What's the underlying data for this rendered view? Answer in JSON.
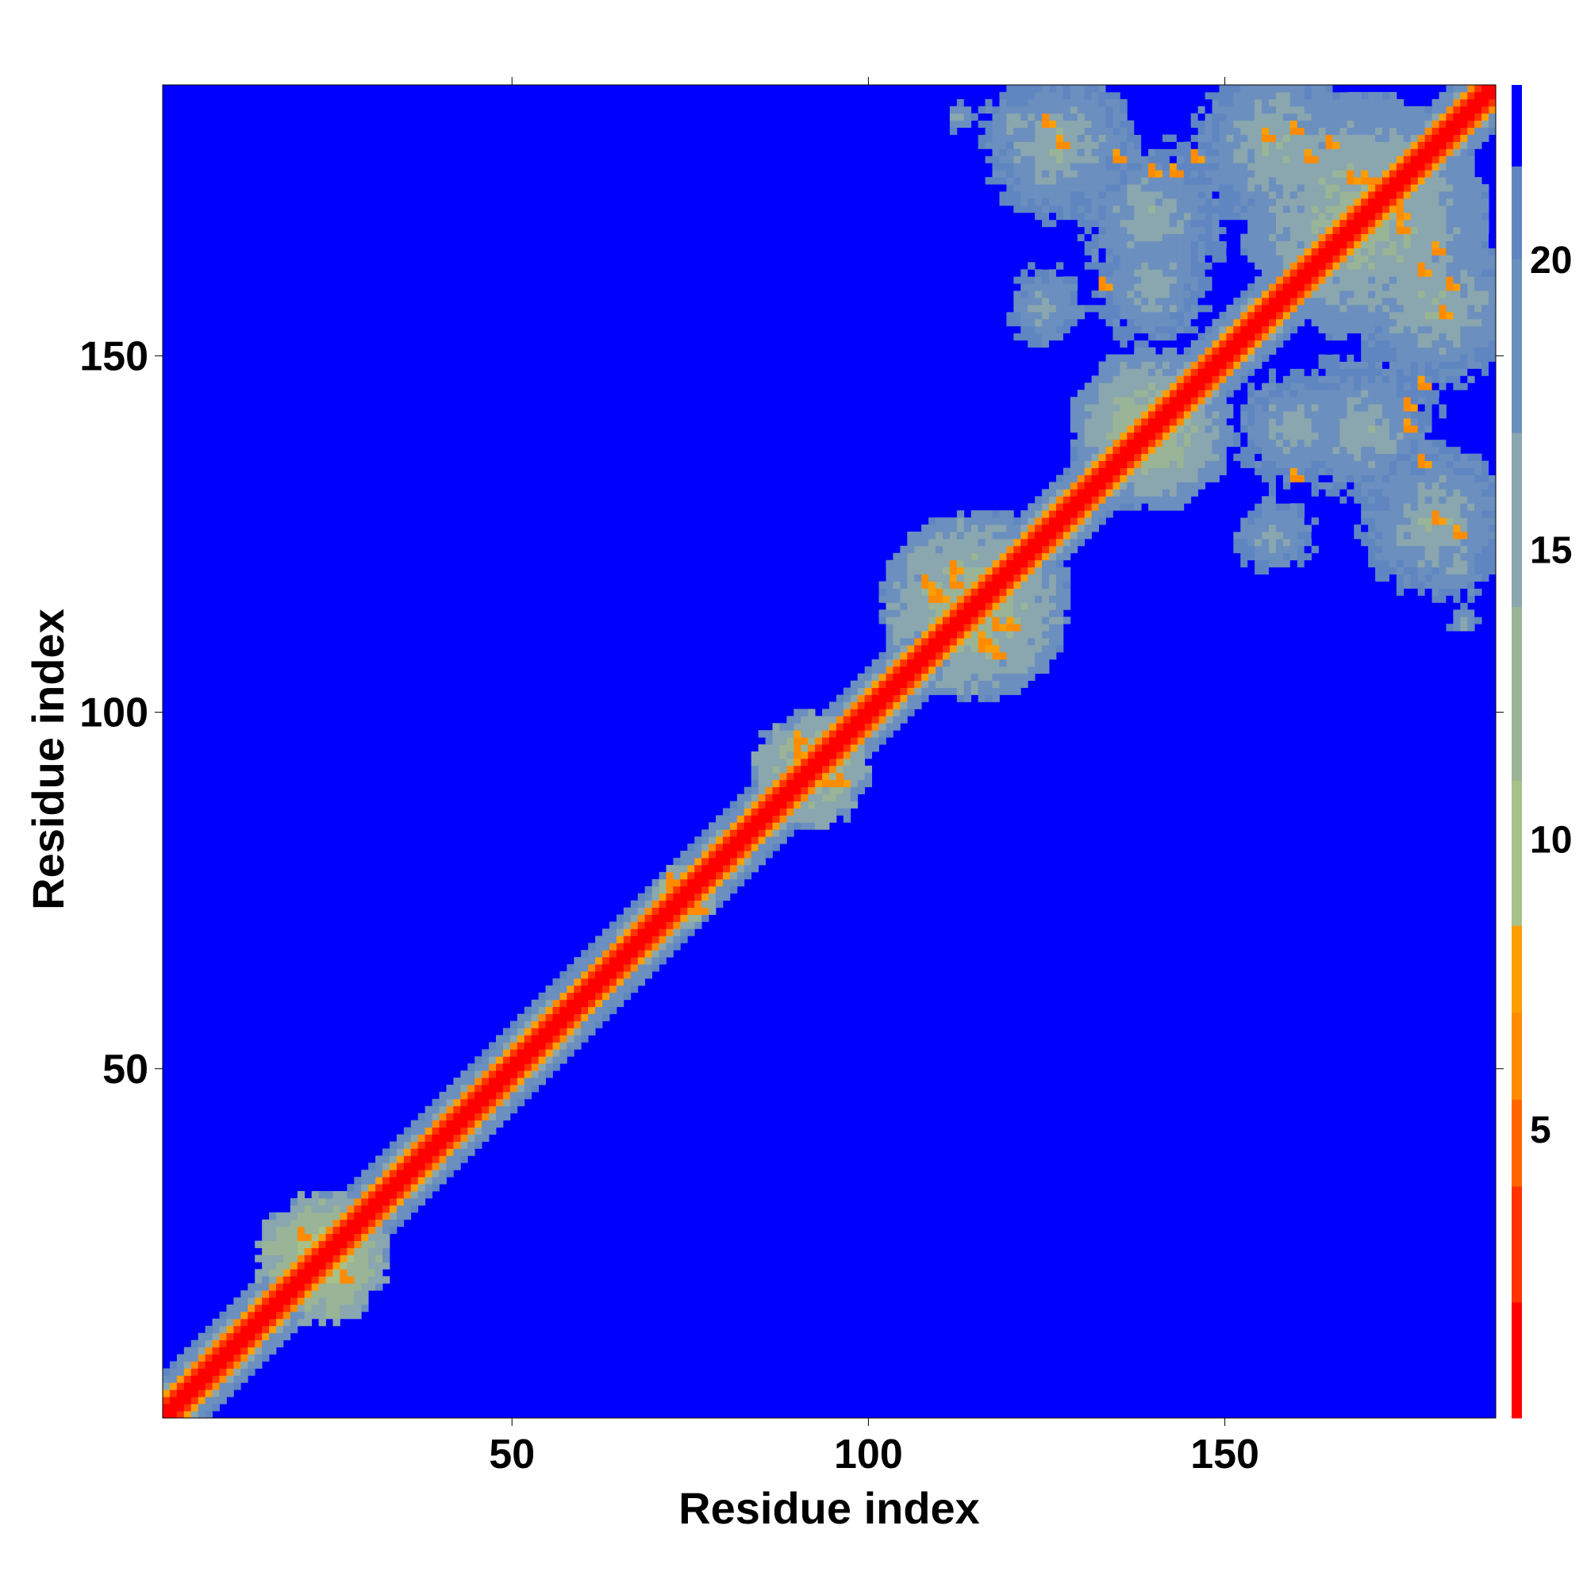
{
  "chart_data": {
    "type": "heatmap",
    "title": "",
    "xlabel": "Residue index",
    "ylabel": "Residue index",
    "n_residues": 188,
    "xlim": [
      1,
      188
    ],
    "ylim": [
      1,
      188
    ],
    "x_ticks": [
      50,
      100,
      150
    ],
    "y_ticks": [
      50,
      100,
      150
    ],
    "symmetric": true,
    "colorbar": {
      "range": [
        0,
        23
      ],
      "ticks": [
        5,
        10,
        15,
        20
      ],
      "color_stops": [
        {
          "upto": 2,
          "color": "#ff0000"
        },
        {
          "upto": 4,
          "color": "#ff3300"
        },
        {
          "upto": 5.5,
          "color": "#ff6600"
        },
        {
          "upto": 7,
          "color": "#ff8c00"
        },
        {
          "upto": 8.5,
          "color": "#ff9e00"
        },
        {
          "upto": 11,
          "color": "#a8c08a"
        },
        {
          "upto": 14,
          "color": "#99b496"
        },
        {
          "upto": 17,
          "color": "#8aa6ae"
        },
        {
          "upto": 20,
          "color": "#6b8fbe"
        },
        {
          "upto": 21.6,
          "color": "#5f86c0"
        },
        {
          "upto": 23,
          "color": "#0000ff"
        }
      ]
    },
    "regions": [
      {
        "center": [
          23,
          23
        ],
        "radius": 10,
        "level": 6.5
      },
      {
        "center": [
          74,
          74
        ],
        "radius": 5,
        "level": 6.8
      },
      {
        "center": [
          92,
          92
        ],
        "radius": 9,
        "level": 8
      },
      {
        "center": [
          115,
          115
        ],
        "radius": 14,
        "level": 9
      },
      {
        "center": [
          140,
          140
        ],
        "radius": 12,
        "level": 9
      },
      {
        "center": [
          170,
          170
        ],
        "radius": 18,
        "level": 10
      },
      {
        "center": [
          127,
          180
        ],
        "radius": 12,
        "level": 12
      },
      {
        "center": [
          158,
          180
        ],
        "radius": 14,
        "level": 12
      },
      {
        "center": [
          140,
          160
        ],
        "radius": 10,
        "level": 13
      },
      {
        "center": [
          170,
          140
        ],
        "radius": 13,
        "level": 13
      },
      {
        "center": [
          183,
          120
        ],
        "radius": 6,
        "level": 14
      },
      {
        "center": [
          113,
          184
        ],
        "radius": 3,
        "level": 13
      },
      {
        "center": [
          157,
          125
        ],
        "radius": 7,
        "level": 13
      }
    ],
    "contact_hotspots": [
      [
        112,
        118
      ],
      [
        109,
        116
      ],
      [
        116,
        110
      ],
      [
        120,
        112
      ],
      [
        118,
        108
      ],
      [
        94,
        90
      ],
      [
        90,
        96
      ],
      [
        72,
        76
      ],
      [
        76,
        72
      ],
      [
        20,
        26
      ],
      [
        26,
        20
      ],
      [
        160,
        182
      ],
      [
        170,
        175
      ],
      [
        175,
        168
      ],
      [
        162,
        178
      ],
      [
        180,
        165
      ],
      [
        183,
        125
      ],
      [
        160,
        133
      ],
      [
        176,
        140
      ],
      [
        178,
        146
      ],
      [
        148,
        150
      ],
      [
        127,
        180
      ],
      [
        135,
        178
      ],
      [
        143,
        176
      ],
      [
        156,
        181
      ]
    ]
  }
}
